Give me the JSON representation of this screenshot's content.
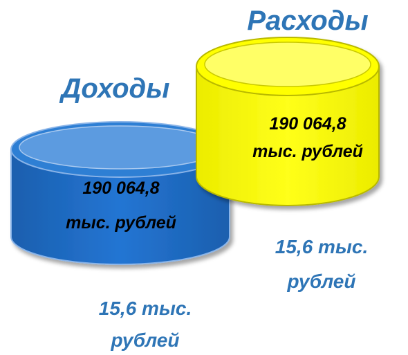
{
  "income": {
    "title": "Доходы",
    "amount_line1": "190 064,8",
    "amount_line2": "тыс. рублей",
    "note_line1": "15,6 тыс.",
    "note_line2": "рублей",
    "color": "#1f6fc5"
  },
  "expenses": {
    "title": "Расходы",
    "amount_line1": "190 064,8",
    "amount_line2": "тыс. рублей",
    "note_line1": "15,6 тыс.",
    "note_line2": "рублей",
    "color": "#ffff00"
  },
  "colors": {
    "title_text": "#2e75b6",
    "amount_text": "#000000"
  }
}
